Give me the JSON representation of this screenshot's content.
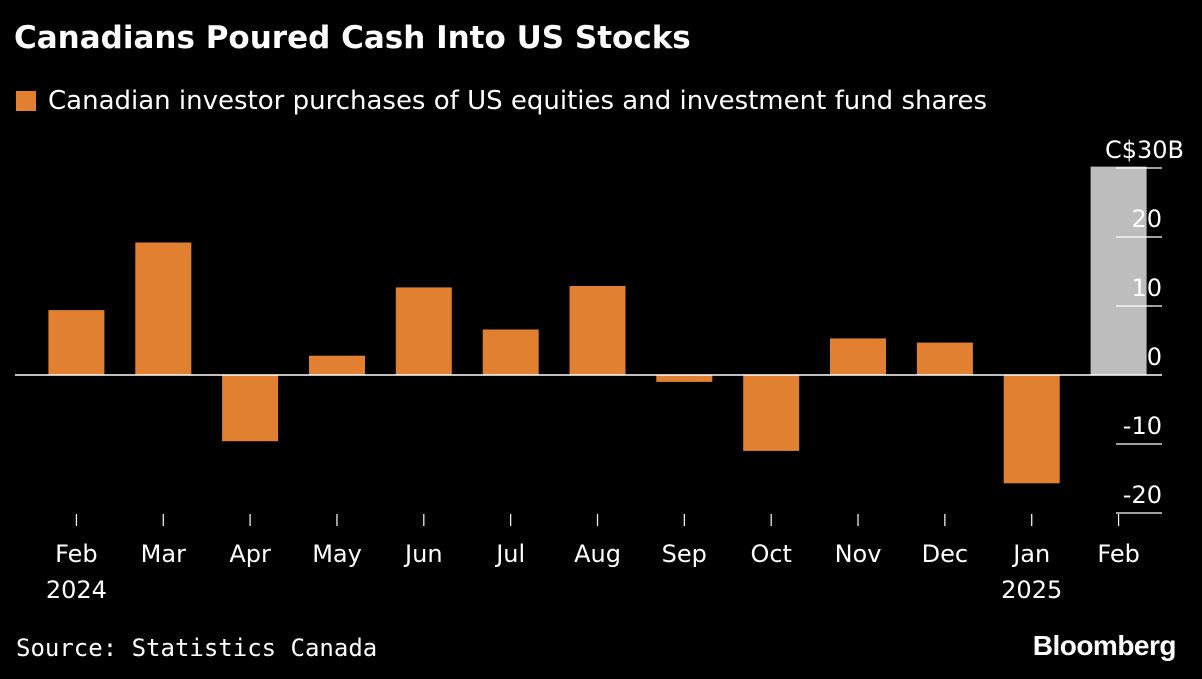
{
  "header": {
    "title": "Canadians Poured Cash Into US Stocks"
  },
  "footer": {
    "source": "Source: Statistics Canada",
    "brand": "Bloomberg"
  },
  "colors": {
    "background": "#000000",
    "bar": "#e08030",
    "highlight_bar": "#bdbdbd",
    "text": "#ffffff"
  },
  "chart_data": {
    "type": "bar",
    "title": "Canadians Poured Cash Into US Stocks",
    "categories": [
      "Feb",
      "Mar",
      "Apr",
      "May",
      "Jun",
      "Jul",
      "Aug",
      "Sep",
      "Oct",
      "Nov",
      "Dec",
      "Jan",
      "Feb"
    ],
    "category_years": [
      "2024",
      "",
      "",
      "",
      "",
      "",
      "",
      "",
      "",
      "",
      "",
      "2025",
      ""
    ],
    "series": [
      {
        "name": "Canadian investor purchases of US equities and investment fund shares",
        "values": [
          9.4,
          19.2,
          -9.6,
          2.8,
          12.7,
          6.6,
          12.9,
          -1.0,
          -11.0,
          5.3,
          4.7,
          -15.7,
          30.2
        ]
      }
    ],
    "highlight_index": 12,
    "ylim": [
      -20,
      30
    ],
    "yticks": [
      -20,
      -10,
      0,
      10,
      20,
      30
    ],
    "ytick_labels": [
      "-20",
      "-10",
      "0",
      "10",
      "20",
      "C$30B"
    ],
    "ylabel": "",
    "xlabel": "",
    "grid": false,
    "legend": "top-left",
    "y_axis_side": "right"
  }
}
